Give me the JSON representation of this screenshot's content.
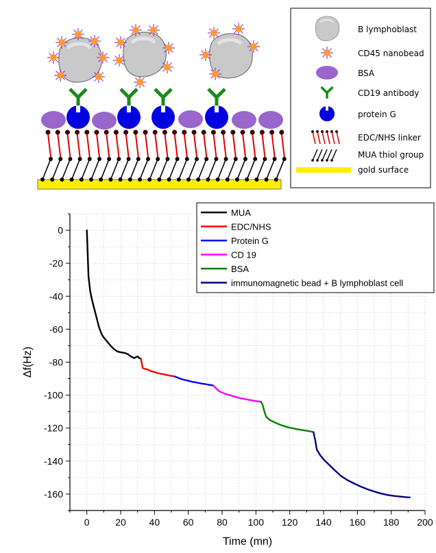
{
  "schematic": {
    "legend": [
      {
        "icon": "cell-icon",
        "label": "B lymphoblast"
      },
      {
        "icon": "nanobead-icon",
        "label": "CD45 nanobead"
      },
      {
        "icon": "bsa-icon",
        "label": "BSA"
      },
      {
        "icon": "antibody-icon",
        "label": "CD19 antibody"
      },
      {
        "icon": "protein-g-icon",
        "label": "protein G"
      },
      {
        "icon": "linker-icon",
        "label": "EDC/NHS linker"
      },
      {
        "icon": "thiol-icon",
        "label": "MUA thiol group"
      },
      {
        "icon": "gold-surface-icon",
        "label": "gold surface"
      }
    ],
    "colors": {
      "gold": "#ffee00",
      "bsa": "#9966cc",
      "protein_g": "#0000e0",
      "antibody": "#1a8a1a",
      "linker": "#e00000",
      "thiol": "#000000",
      "nanobead": "#ff9933",
      "cell": "#c8c8c8"
    }
  },
  "chart_data": {
    "type": "line",
    "xlabel": "Time (mn)",
    "ylabel": "Δf(Hz)",
    "xlim": [
      -10,
      200
    ],
    "ylim": [
      -170,
      10
    ],
    "xticks": [
      0,
      20,
      40,
      60,
      80,
      100,
      120,
      140,
      160,
      180,
      200
    ],
    "yticks": [
      0,
      -20,
      -40,
      -60,
      -80,
      -100,
      -120,
      -140,
      -160
    ],
    "grid": true,
    "legend_position": "top-right",
    "series": [
      {
        "name": "MUA",
        "color": "#000000",
        "x": [
          0,
          0.5,
          1,
          2,
          3,
          4,
          5,
          6,
          7,
          8,
          9,
          10,
          12,
          14,
          16,
          18,
          20,
          22,
          24,
          26,
          28,
          29,
          30,
          31,
          32
        ],
        "y": [
          0,
          -14,
          -28,
          -37,
          -42,
          -46,
          -50,
          -54,
          -58,
          -61,
          -63.5,
          -65,
          -67.5,
          -70,
          -72,
          -73.5,
          -74,
          -74.3,
          -75,
          -76.5,
          -77.5,
          -77,
          -76.5,
          -77.5,
          -78
        ]
      },
      {
        "name": "EDC/NHS",
        "color": "#ff0000",
        "x": [
          32,
          33,
          34,
          36,
          38,
          40,
          42,
          45,
          48,
          51,
          52
        ],
        "y": [
          -78,
          -83.5,
          -84,
          -84.5,
          -85.5,
          -86,
          -86.7,
          -87.3,
          -88,
          -88.5,
          -88.7
        ]
      },
      {
        "name": "Protein G",
        "color": "#0000ff",
        "x": [
          52,
          54,
          56,
          58,
          60,
          62,
          64,
          66,
          68,
          70,
          72,
          74,
          75
        ],
        "y": [
          -88.7,
          -89.5,
          -90.3,
          -90.8,
          -91.3,
          -91.8,
          -92.2,
          -92.6,
          -93,
          -93.3,
          -93.7,
          -94,
          -94.3
        ]
      },
      {
        "name": "CD 19",
        "color": "#ff00ff",
        "x": [
          75,
          76,
          78,
          80,
          82,
          85,
          88,
          91,
          94,
          97,
          100,
          102,
          103
        ],
        "y": [
          -94.3,
          -95.5,
          -97.5,
          -98.5,
          -99.3,
          -100.2,
          -101.1,
          -101.9,
          -102.5,
          -103.1,
          -103.6,
          -103.9,
          -104
        ]
      },
      {
        "name": "BSA",
        "color": "#008000",
        "x": [
          103,
          104,
          105,
          106,
          108,
          110,
          113,
          116,
          120,
          124,
          128,
          131,
          133,
          134
        ],
        "y": [
          -104,
          -106,
          -110,
          -113,
          -115,
          -116,
          -117.4,
          -118.6,
          -119.8,
          -120.6,
          -121.3,
          -121.8,
          -122.2,
          -122.4
        ]
      },
      {
        "name": "immunomagnetic bead + B lymphoblast cell",
        "color": "#00007f",
        "x": [
          134,
          135,
          136,
          138,
          140,
          143,
          146,
          150,
          154,
          158,
          162,
          166,
          170,
          174,
          178,
          182,
          186,
          190,
          191
        ],
        "y": [
          -122.4,
          -127,
          -133,
          -136.5,
          -139,
          -142,
          -145,
          -148.8,
          -151.5,
          -153.6,
          -155.5,
          -157.1,
          -158.5,
          -159.7,
          -160.6,
          -161.2,
          -161.6,
          -162,
          -162
        ]
      }
    ]
  }
}
